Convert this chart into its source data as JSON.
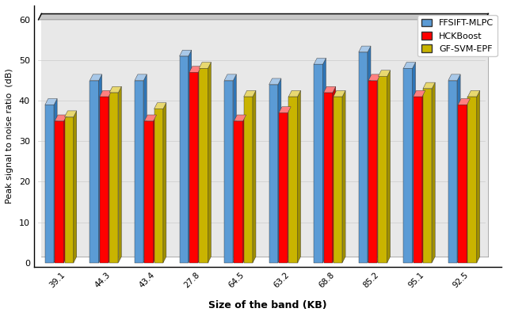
{
  "categories": [
    "39.1",
    "44.3",
    "43.4",
    "27.8",
    "64.5",
    "63.2",
    "68.8",
    "85.2",
    "95.1",
    "92.5"
  ],
  "ffsift_mlpc": [
    39,
    45,
    45,
    51,
    45,
    44,
    49,
    52,
    48,
    45
  ],
  "hckboost": [
    35,
    41,
    35,
    47,
    35,
    37,
    42,
    45,
    41,
    39
  ],
  "gf_svm_epf": [
    36,
    42,
    38,
    48,
    41,
    41,
    41,
    46,
    43,
    41
  ],
  "bar_colors": [
    "#5b9bd5",
    "#ff0000",
    "#c9b400"
  ],
  "bar_top_colors": [
    "#a8c8e8",
    "#ff8080",
    "#e8d870"
  ],
  "bar_side_colors": [
    "#2e75b6",
    "#cc0000",
    "#a09000"
  ],
  "legend_labels": [
    "FFSIFT-MLPC",
    "HCKBoost",
    "GF-SVM-EPF"
  ],
  "xlabel": "Size of the band (KB)",
  "ylabel": "Peak signal to noise ratio  (dB)",
  "ylim": [
    0,
    60
  ],
  "yticks": [
    0,
    10,
    20,
    30,
    40,
    50,
    60
  ],
  "figsize": [
    6.4,
    3.99
  ],
  "dpi": 100,
  "background_color": "#ffffff"
}
